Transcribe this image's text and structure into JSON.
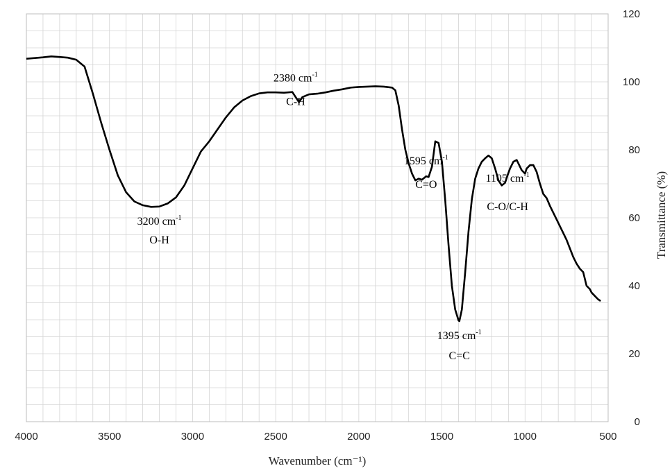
{
  "chart_data": {
    "type": "line",
    "xlabel": "Wavenumber (cm⁻¹)",
    "ylabel": "Transmittance (%)",
    "xlim": [
      4000,
      500
    ],
    "ylim": [
      0,
      120
    ],
    "x_axis_reversed": true,
    "y_axis_position": "right",
    "grid": true,
    "x_ticks": [
      4000,
      3500,
      3000,
      2500,
      2000,
      1500,
      1000,
      500
    ],
    "y_ticks": [
      0,
      20,
      40,
      60,
      80,
      100,
      120
    ],
    "x_tick_labels": [
      "4000",
      "3500",
      "3000",
      "2500",
      "2000",
      "1500",
      "1000",
      "500"
    ],
    "y_tick_labels": [
      "0",
      "20",
      "40",
      "60",
      "80",
      "100",
      "120"
    ],
    "series": [
      {
        "x": [
          4000,
          3900,
          3850,
          3800,
          3750,
          3700,
          3650,
          3600,
          3550,
          3500,
          3450,
          3400,
          3350,
          3300,
          3250,
          3200,
          3150,
          3100,
          3050,
          3000,
          2950,
          2900,
          2850,
          2800,
          2750,
          2700,
          2650,
          2600,
          2550,
          2500,
          2450,
          2400,
          2380,
          2360,
          2340,
          2300,
          2250,
          2200,
          2150,
          2100,
          2050,
          2000,
          1950,
          1900,
          1850,
          1800,
          1780,
          1760,
          1740,
          1720,
          1700,
          1680,
          1660,
          1640,
          1620,
          1600,
          1595,
          1580,
          1560,
          1540,
          1520,
          1500,
          1480,
          1460,
          1440,
          1420,
          1400,
          1395,
          1380,
          1360,
          1340,
          1320,
          1300,
          1280,
          1260,
          1240,
          1220,
          1200,
          1180,
          1160,
          1140,
          1120,
          1105,
          1090,
          1070,
          1050,
          1040,
          1020,
          1000,
          990,
          970,
          950,
          930,
          910,
          890,
          870,
          850,
          830,
          810,
          790,
          770,
          750,
          730,
          710,
          690,
          670,
          650,
          630,
          610,
          600,
          580,
          560,
          545
        ],
        "values": [
          106.8,
          107.2,
          107.5,
          107.3,
          107.1,
          106.5,
          104.5,
          96.5,
          88,
          80,
          72.5,
          67.5,
          64.8,
          63.7,
          63.2,
          63.3,
          64.2,
          66,
          69.5,
          74.5,
          79.5,
          82.5,
          86,
          89.5,
          92.5,
          94.5,
          95.8,
          96.6,
          96.9,
          96.9,
          96.8,
          97,
          95.5,
          94,
          95.5,
          96.3,
          96.5,
          96.9,
          97.4,
          97.8,
          98.3,
          98.5,
          98.6,
          98.7,
          98.6,
          98.3,
          97.5,
          93,
          86,
          80,
          76,
          73,
          71,
          71.5,
          71.2,
          72,
          72.2,
          72,
          75,
          82.5,
          82,
          76.5,
          65,
          52,
          40,
          33,
          29.8,
          29.6,
          33,
          44,
          56,
          65.5,
          71.5,
          74.5,
          76.5,
          77.5,
          78.3,
          77.5,
          74.5,
          71,
          69.5,
          70.3,
          72.5,
          74.5,
          76.5,
          77,
          76,
          74,
          73,
          74.5,
          75.5,
          75.5,
          73.5,
          70,
          67,
          65.8,
          63.5,
          61.5,
          59.5,
          57.5,
          55.5,
          53.5,
          51,
          48.5,
          46.5,
          45,
          44,
          40,
          39,
          38,
          37,
          36,
          35.5
        ]
      }
    ],
    "annotations": [
      {
        "line1": "3200 cm",
        "sup": "-1",
        "line2": "O-H",
        "x": 3200,
        "y": 63.5
      },
      {
        "line1": "2380 cm",
        "sup": "-1",
        "line2": "C-H",
        "x": 2380,
        "y": 94
      },
      {
        "line1": "1595 cm",
        "sup": "-1",
        "line2": "C=O",
        "x": 1595,
        "y": 72
      },
      {
        "line1": "1395 cm",
        "sup": "-1",
        "line2": "C=C",
        "x": 1395,
        "y": 29.6
      },
      {
        "line1": "1105 cm",
        "sup": "-1",
        "line2": "C-O/C-H",
        "x": 1105,
        "y": 70
      }
    ],
    "colors": {
      "line": "#000000",
      "grid": "#d4d4d4",
      "frame": "#bdbdbd"
    }
  }
}
